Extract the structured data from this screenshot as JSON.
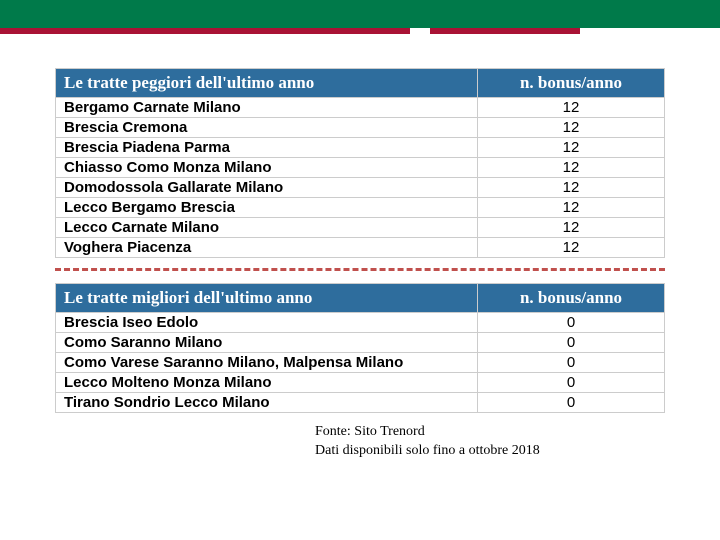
{
  "top_bar_color": "#007a4a",
  "red_stripe_color": "#a91235",
  "header_bg_color": "#2e6d9d",
  "header_text_color": "#ffffff",
  "divider_color": "#c0504d",
  "table1": {
    "header_left": "Le tratte peggiori dell'ultimo anno",
    "header_right": "n. bonus/anno",
    "rows": [
      {
        "route": "Bergamo Carnate Milano",
        "bonus": "12"
      },
      {
        "route": "Brescia Cremona",
        "bonus": "12"
      },
      {
        "route": "Brescia Piadena Parma",
        "bonus": "12"
      },
      {
        "route": "Chiasso Como Monza Milano",
        "bonus": "12"
      },
      {
        "route": "Domodossola Gallarate Milano",
        "bonus": "12"
      },
      {
        "route": "Lecco Bergamo Brescia",
        "bonus": "12"
      },
      {
        "route": "Lecco Carnate Milano",
        "bonus": "12"
      },
      {
        "route": "Voghera Piacenza",
        "bonus": "12"
      }
    ]
  },
  "table2": {
    "header_left": "Le tratte migliori dell'ultimo anno",
    "header_right": "n. bonus/anno",
    "rows": [
      {
        "route": "Brescia Iseo Edolo",
        "bonus": "0"
      },
      {
        "route": "Como Saranno Milano",
        "bonus": "0"
      },
      {
        "route": "Como Varese Saranno Milano, Malpensa Milano",
        "bonus": "0"
      },
      {
        "route": "Lecco Molteno Monza Milano",
        "bonus": "0"
      },
      {
        "route": "Tirano Sondrio Lecco Milano",
        "bonus": "0"
      }
    ]
  },
  "footnote_line1": "Fonte: Sito Trenord",
  "footnote_line2": "Dati disponibili solo fino a ottobre 2018"
}
